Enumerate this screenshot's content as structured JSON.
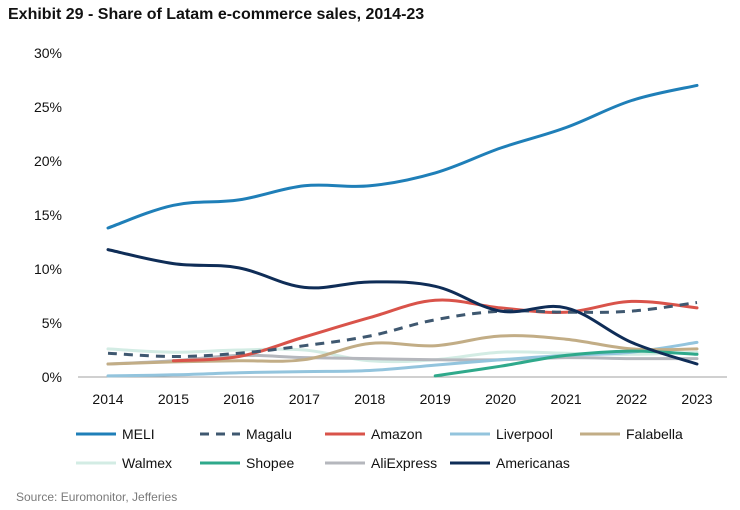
{
  "title": "Exhibit 29 - Share of Latam e-commerce sales, 2014-23",
  "source": "Source: Euromonitor, Jefferies",
  "chart_data": {
    "type": "line",
    "title": "Exhibit 29 - Share of Latam e-commerce sales, 2014-23",
    "xlabel": "",
    "ylabel": "",
    "x": [
      "2014",
      "2015",
      "2016",
      "2017",
      "2018",
      "2019",
      "2020",
      "2021",
      "2022",
      "2023"
    ],
    "ylim": [
      0,
      30
    ],
    "yticks": [
      0,
      5,
      10,
      15,
      20,
      25,
      30
    ],
    "ytick_labels": [
      "0%",
      "5%",
      "10%",
      "15%",
      "20%",
      "25%",
      "30%"
    ],
    "grid": false,
    "legend_position": "bottom",
    "series": [
      {
        "name": "MELI",
        "color": "#1f7fb8",
        "dash": false,
        "values": [
          13.8,
          15.9,
          16.4,
          17.7,
          17.7,
          18.9,
          21.2,
          23.1,
          25.6,
          27.0
        ]
      },
      {
        "name": "Magalu",
        "color": "#3f5870",
        "dash": true,
        "values": [
          2.2,
          1.9,
          2.2,
          2.9,
          3.8,
          5.3,
          6.1,
          6.0,
          6.1,
          6.9
        ]
      },
      {
        "name": "Amazon",
        "color": "#d9534a",
        "dash": false,
        "values": [
          null,
          1.5,
          1.9,
          3.7,
          5.5,
          7.1,
          6.4,
          6.0,
          7.0,
          6.4
        ]
      },
      {
        "name": "Liverpool",
        "color": "#93c4dd",
        "dash": false,
        "values": [
          0.1,
          0.2,
          0.4,
          0.5,
          0.6,
          1.1,
          1.6,
          2.0,
          2.3,
          3.2
        ]
      },
      {
        "name": "Falabella",
        "color": "#c2ad86",
        "dash": false,
        "values": [
          1.2,
          1.4,
          1.5,
          1.6,
          3.1,
          2.9,
          3.8,
          3.5,
          2.6,
          2.6
        ]
      },
      {
        "name": "Walmex",
        "color": "#d3ece4",
        "dash": false,
        "values": [
          2.6,
          2.3,
          2.5,
          2.5,
          1.5,
          1.6,
          2.3,
          2.2,
          2.1,
          2.3
        ]
      },
      {
        "name": "Shopee",
        "color": "#2fa98b",
        "dash": false,
        "values": [
          null,
          null,
          null,
          null,
          null,
          0.1,
          1.0,
          2.0,
          2.4,
          2.1
        ]
      },
      {
        "name": "AliExpress",
        "color": "#b5b7bd",
        "dash": false,
        "values": [
          1.2,
          1.5,
          2.0,
          1.8,
          1.7,
          1.6,
          1.6,
          1.8,
          1.7,
          1.7
        ]
      },
      {
        "name": "Americanas",
        "color": "#0f2d57",
        "dash": false,
        "values": [
          11.8,
          10.5,
          10.1,
          8.3,
          8.8,
          8.4,
          6.1,
          6.4,
          3.2,
          1.2
        ]
      }
    ]
  }
}
